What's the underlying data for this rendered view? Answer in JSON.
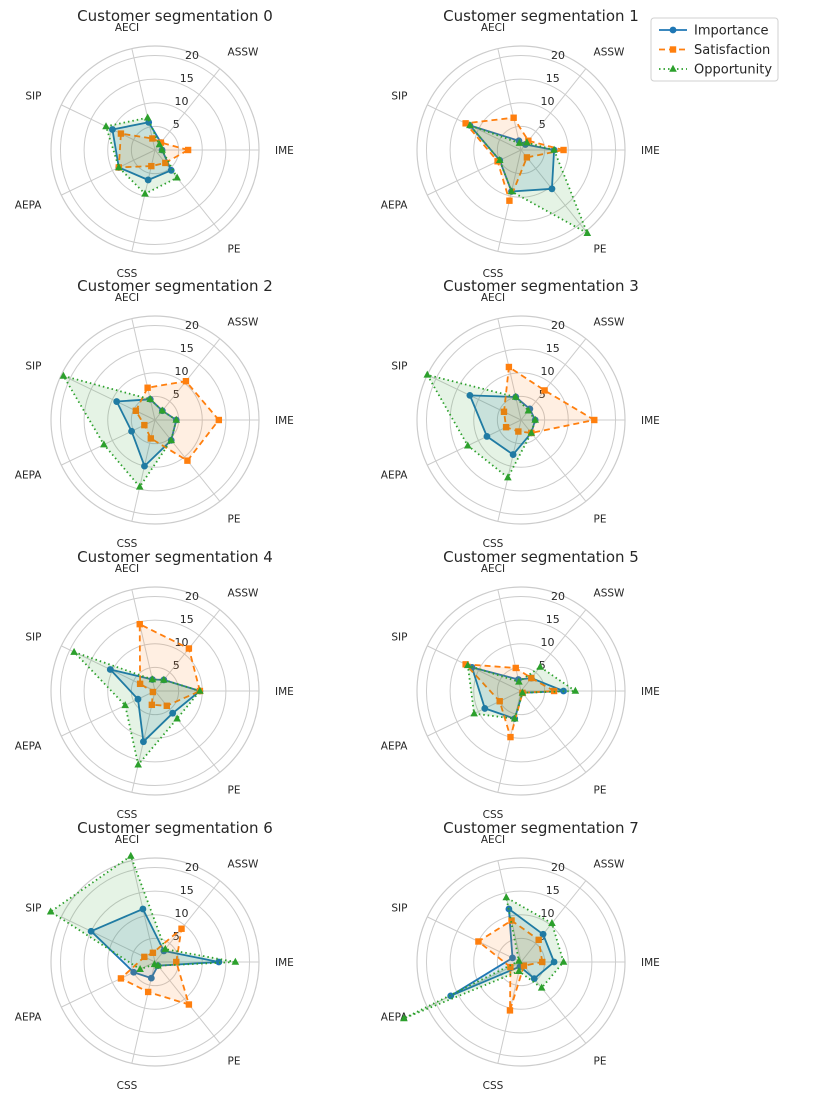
{
  "chart_data": {
    "type": "radar",
    "layout": "4x2 grid",
    "categories": [
      "IME",
      "ASSW",
      "AECI",
      "SIP",
      "AEPA",
      "CSS",
      "PE"
    ],
    "rlim": [
      0,
      22
    ],
    "rticks": [
      5,
      10,
      15,
      20
    ],
    "grid": true,
    "legend": {
      "position": "top-right",
      "entries": [
        "Importance",
        "Satisfaction",
        "Opportunity"
      ]
    },
    "series_styles": [
      {
        "name": "Importance",
        "color": "#1f77b4",
        "linestyle": "solid",
        "marker": "circle"
      },
      {
        "name": "Satisfaction",
        "color": "#ff7f0e",
        "linestyle": "dashed",
        "marker": "square"
      },
      {
        "name": "Opportunity",
        "color": "#2ca02c",
        "linestyle": "dotted",
        "marker": "triangle"
      }
    ],
    "panels": [
      {
        "title": "Customer segmentation 0",
        "series": [
          {
            "name": "Importance",
            "values": [
              1.5,
              2,
              6,
              10,
              8.5,
              6.5,
              5.5
            ]
          },
          {
            "name": "Satisfaction",
            "values": [
              7,
              2,
              2.5,
              8,
              8.5,
              3.5,
              3.5
            ]
          },
          {
            "name": "Opportunity",
            "values": [
              1.5,
              1.5,
              7,
              11.5,
              8.5,
              9.5,
              7.5
            ]
          }
        ]
      },
      {
        "title": "Customer segmentation 1",
        "series": [
          {
            "name": "Importance",
            "values": [
              7,
              1.5,
              2,
              12,
              5,
              9,
              10.5
            ]
          },
          {
            "name": "Satisfaction",
            "values": [
              9,
              2.5,
              7,
              13,
              5.5,
              11,
              2
            ]
          },
          {
            "name": "Opportunity",
            "values": [
              7,
              2,
              1.5,
              12,
              5,
              9,
              22.5
            ]
          }
        ]
      },
      {
        "title": "Customer segmentation 2",
        "series": [
          {
            "name": "Importance",
            "values": [
              4.5,
              2.5,
              4.5,
              9,
              5.5,
              10,
              5.5
            ]
          },
          {
            "name": "Satisfaction",
            "values": [
              13.5,
              10.5,
              7,
              4.5,
              2.5,
              4,
              11
            ]
          },
          {
            "name": "Opportunity",
            "values": [
              4.5,
              2.5,
              4.5,
              21.5,
              12,
              14.5,
              5.5
            ]
          }
        ]
      },
      {
        "title": "Customer segmentation 3",
        "series": [
          {
            "name": "Importance",
            "values": [
              3,
              3,
              5,
              12,
              8,
              7.5,
              3.5
            ]
          },
          {
            "name": "Satisfaction",
            "values": [
              15.5,
              8,
              11.5,
              4,
              3.5,
              2.5,
              3.5
            ]
          },
          {
            "name": "Opportunity",
            "values": [
              3,
              2.5,
              5,
              22,
              12.5,
              12.5,
              3.5
            ]
          }
        ]
      },
      {
        "title": "Customer segmentation 4",
        "series": [
          {
            "name": "Importance",
            "values": [
              9.5,
              3,
              2.5,
              10.5,
              4,
              11,
              6
            ]
          },
          {
            "name": "Satisfaction",
            "values": [
              9.5,
              11.5,
              14.5,
              3.5,
              0.5,
              3,
              4
            ]
          },
          {
            "name": "Opportunity",
            "values": [
              9.5,
              3,
              2.5,
              19,
              7,
              16,
              7.5
            ]
          }
        ]
      },
      {
        "title": "Customer segmentation 5",
        "series": [
          {
            "name": "Importance",
            "values": [
              9,
              3.5,
              2.5,
              11.5,
              8.5,
              6,
              0.5
            ]
          },
          {
            "name": "Satisfaction",
            "values": [
              7,
              3.5,
              5,
              13,
              5,
              10,
              0.5
            ]
          },
          {
            "name": "Opportunity",
            "values": [
              11.5,
              6.5,
              2,
              12.5,
              11,
              6,
              0.5
            ]
          }
        ]
      },
      {
        "title": "Customer segmentation 6",
        "series": [
          {
            "name": "Importance",
            "values": [
              13.5,
              3,
              11.5,
              15,
              5,
              3.5,
              1
            ]
          },
          {
            "name": "Satisfaction",
            "values": [
              4.5,
              9,
              2,
              2.5,
              8,
              6.5,
              11.5
            ]
          },
          {
            "name": "Opportunity",
            "values": [
              17,
              3.5,
              23,
              24.5,
              3.5,
              0.5,
              1
            ]
          }
        ]
      },
      {
        "title": "Customer segmentation 7",
        "series": [
          {
            "name": "Importance",
            "values": [
              7,
              7.5,
              11.5,
              2,
              16.5,
              1,
              4.5
            ]
          },
          {
            "name": "Satisfaction",
            "values": [
              4.5,
              6,
              9,
              10,
              2.5,
              10.5,
              1
            ]
          },
          {
            "name": "Opportunity",
            "values": [
              9,
              10.5,
              14,
              0.5,
              27.5,
              2,
              7
            ]
          }
        ]
      }
    ]
  }
}
